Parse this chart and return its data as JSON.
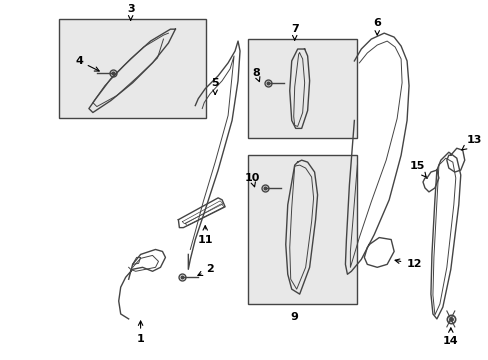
{
  "background_color": "#ffffff",
  "line_color": "#444444",
  "label_color": "#000000",
  "fig_width": 4.89,
  "fig_height": 3.6,
  "dpi": 100
}
